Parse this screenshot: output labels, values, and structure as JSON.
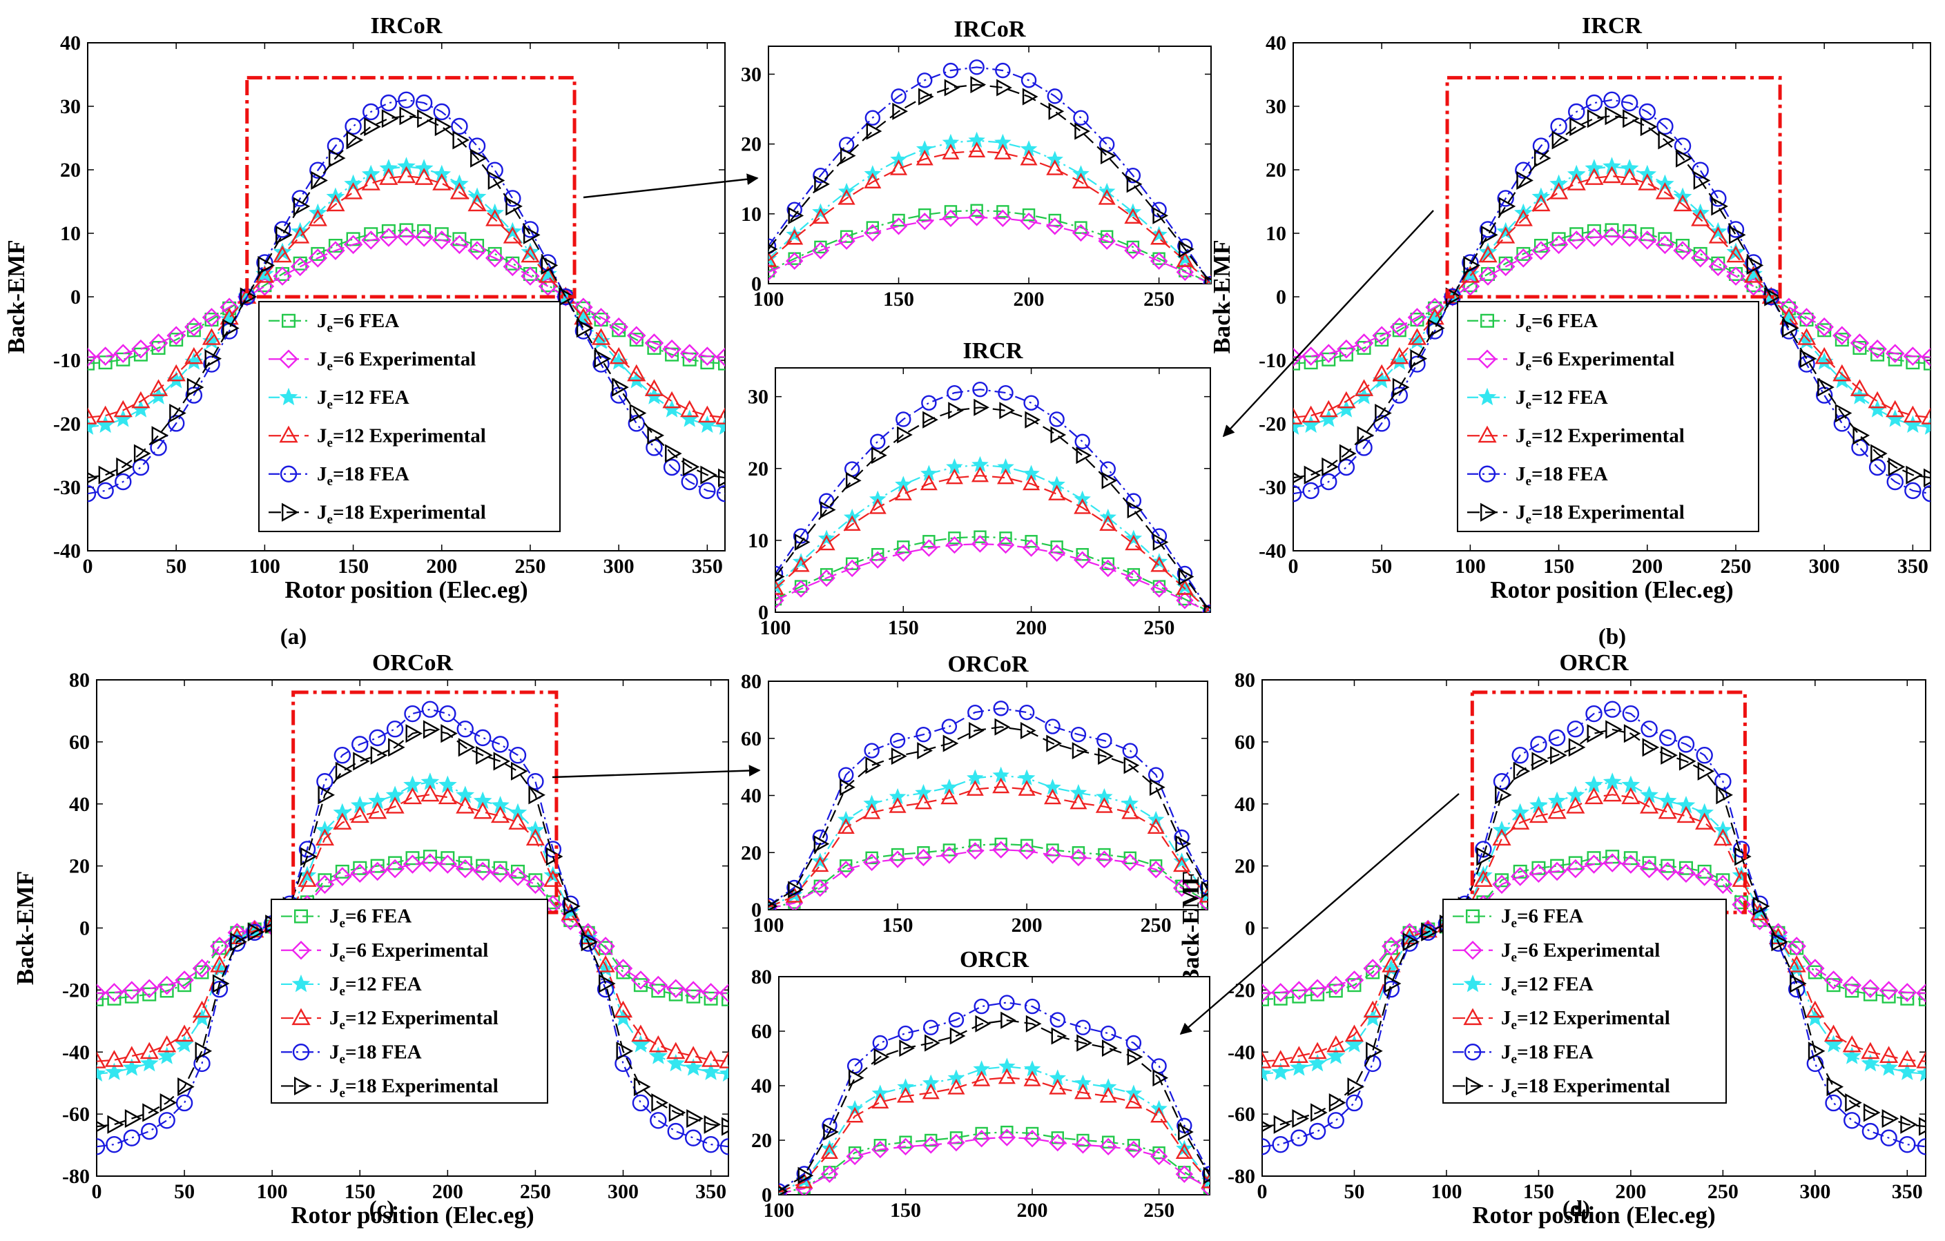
{
  "figure_caption_labels": [
    "(a)",
    "(b)",
    "(c)",
    "(d)"
  ],
  "colors": {
    "je6_fea": "#22c84a",
    "je6_exp": "#ee22ee",
    "je12_fea": "#33e6f0",
    "je12_exp": "#ee2222",
    "je18_fea": "#1a1ae0",
    "je18_exp": "#000000",
    "zoom_box": "#ee1111"
  },
  "legend_labels": {
    "fea_word": "FEA",
    "exp_word": "Experimental",
    "prefix": "J",
    "subscript": "e",
    "values": [
      "6",
      "6",
      "12",
      "12",
      "18",
      "18"
    ]
  },
  "chart_data": [
    {
      "id": "a",
      "type": "line",
      "title": "IRCoR",
      "xlabel": "Rotor position (Elec.eg)",
      "ylabel": "Back-EMF",
      "xlim": [
        0,
        360
      ],
      "ylim": [
        -40,
        40
      ],
      "xticks": [
        0,
        50,
        100,
        150,
        200,
        250,
        300,
        350
      ],
      "yticks": [
        -40,
        -30,
        -20,
        -10,
        0,
        10,
        20,
        30,
        40
      ],
      "zoom_region": {
        "x": [
          90,
          275
        ],
        "y": [
          0,
          34.5
        ]
      },
      "legend_position": "lower-center",
      "series": [
        {
          "name": "J_e=6 FEA",
          "amp": 10.5,
          "type_shape": "sine"
        },
        {
          "name": "J_e=6 Experimental",
          "amp": 9.5,
          "type_shape": "sine"
        },
        {
          "name": "J_e=12 FEA",
          "amp": 20.5,
          "type_shape": "sine"
        },
        {
          "name": "J_e=12 Experimental",
          "amp": 19,
          "type_shape": "sine"
        },
        {
          "name": "J_e=18 FEA",
          "amp": 31,
          "type_shape": "sine"
        },
        {
          "name": "J_e=18 Experimental",
          "amp": 28.5,
          "type_shape": "sine"
        }
      ]
    },
    {
      "id": "a-zoom",
      "type": "line",
      "title": "IRCoR",
      "xlabel": "",
      "ylabel": "",
      "xlim": [
        100,
        270
      ],
      "ylim": [
        0,
        34
      ],
      "xticks": [
        100,
        150,
        200,
        250
      ],
      "yticks": [
        0,
        10,
        20,
        30
      ],
      "series_ref": "a"
    },
    {
      "id": "b",
      "type": "line",
      "title": "IRCR",
      "xlabel": "Rotor position (Elec.eg)",
      "ylabel": "Back-EMF",
      "xlim": [
        0,
        360
      ],
      "ylim": [
        -40,
        40
      ],
      "xticks": [
        0,
        50,
        100,
        150,
        200,
        250,
        300,
        350
      ],
      "yticks": [
        -40,
        -30,
        -20,
        -10,
        0,
        10,
        20,
        30,
        40
      ],
      "zoom_region": {
        "x": [
          87,
          275
        ],
        "y": [
          0,
          34.5
        ]
      },
      "legend_position": "lower-center",
      "series_ref": "a"
    },
    {
      "id": "b-zoom",
      "type": "line",
      "title": "IRCR",
      "xlabel": "",
      "ylabel": "",
      "xlim": [
        100,
        270
      ],
      "ylim": [
        0,
        34
      ],
      "xticks": [
        100,
        150,
        200,
        250
      ],
      "yticks": [
        0,
        10,
        20,
        30
      ],
      "series_ref": "a"
    },
    {
      "id": "c",
      "type": "line",
      "title": "ORCoR",
      "xlabel": "Rotor position (Elec.eg)",
      "ylabel": "Back-EMF",
      "xlim": [
        0,
        360
      ],
      "ylim": [
        -80,
        80
      ],
      "xticks": [
        0,
        50,
        100,
        150,
        200,
        250,
        300,
        350
      ],
      "yticks": [
        -80,
        -60,
        -40,
        -20,
        0,
        20,
        40,
        60,
        80
      ],
      "zoom_region": {
        "x": [
          112,
          262
        ],
        "y": [
          5,
          76
        ]
      },
      "legend_position": "lower-center",
      "series": [
        {
          "name": "J_e=6 FEA",
          "amp": 23,
          "type_shape": "flat"
        },
        {
          "name": "J_e=6 Experimental",
          "amp": 21,
          "type_shape": "flat"
        },
        {
          "name": "J_e=12 FEA",
          "amp": 47,
          "type_shape": "flat"
        },
        {
          "name": "J_e=12 Experimental",
          "amp": 43,
          "type_shape": "flat"
        },
        {
          "name": "J_e=18 FEA",
          "amp": 70.5,
          "type_shape": "flat"
        },
        {
          "name": "J_e=18 Experimental",
          "amp": 64,
          "type_shape": "flat"
        }
      ]
    },
    {
      "id": "c-zoom",
      "type": "line",
      "title": "ORCoR",
      "xlabel": "",
      "ylabel": "",
      "xlim": [
        100,
        270
      ],
      "ylim": [
        0,
        80
      ],
      "xticks": [
        100,
        150,
        200,
        250
      ],
      "yticks": [
        0,
        20,
        40,
        60,
        80
      ],
      "series_ref": "c"
    },
    {
      "id": "d",
      "type": "line",
      "title": "ORCR",
      "xlabel": "Rotor position (Elec.eg)",
      "ylabel": "Back-EMF",
      "xlim": [
        0,
        360
      ],
      "ylim": [
        -80,
        80
      ],
      "xticks": [
        0,
        50,
        100,
        150,
        200,
        250,
        300,
        350
      ],
      "yticks": [
        -80,
        -60,
        -40,
        -20,
        0,
        20,
        40,
        60,
        80
      ],
      "zoom_region": {
        "x": [
          114,
          262
        ],
        "y": [
          5,
          76
        ]
      },
      "legend_position": "lower-center",
      "series_ref": "c"
    },
    {
      "id": "d-zoom",
      "type": "line",
      "title": "ORCR",
      "xlabel": "",
      "ylabel": "",
      "xlim": [
        100,
        270
      ],
      "ylim": [
        0,
        80
      ],
      "xticks": [
        100,
        150,
        200,
        250
      ],
      "yticks": [
        0,
        20,
        40,
        60,
        80
      ],
      "series_ref": "c"
    }
  ]
}
